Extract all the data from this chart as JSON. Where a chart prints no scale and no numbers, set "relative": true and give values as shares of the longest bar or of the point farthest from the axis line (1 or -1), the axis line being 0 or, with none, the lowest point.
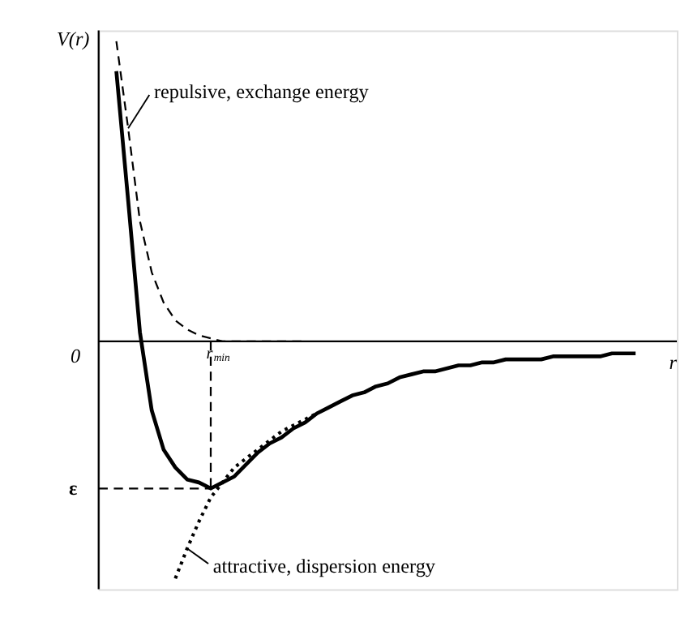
{
  "chart_data": {
    "type": "line",
    "relative": true,
    "xlabel": "r",
    "ylabel": "V(r)",
    "categories": [
      null,
      null,
      null,
      null,
      null,
      null,
      null,
      null,
      null,
      null,
      null,
      null,
      null,
      null,
      null,
      null,
      null,
      null,
      null,
      null,
      null,
      null,
      null,
      null,
      null,
      null,
      null,
      null,
      null,
      null,
      null,
      null,
      null,
      null,
      null,
      null,
      null,
      null,
      null,
      null,
      null,
      null,
      null,
      null,
      null
    ],
    "series": [
      {
        "color": "#000000",
        "line_style": "solid",
        "values": [
          0.9,
          0.47,
          0.03,
          -0.23,
          -0.36,
          -0.42,
          -0.46,
          -0.47,
          -0.49,
          -0.47,
          -0.45,
          -0.41,
          -0.37,
          -0.34,
          -0.32,
          -0.29,
          -0.27,
          -0.24,
          -0.22,
          -0.2,
          -0.18,
          -0.17,
          -0.15,
          -0.14,
          -0.12,
          -0.11,
          -0.1,
          -0.1,
          -0.09,
          -0.08,
          -0.08,
          -0.07,
          -0.07,
          -0.06,
          -0.06,
          -0.06,
          -0.06,
          -0.05,
          -0.05,
          -0.05,
          -0.05,
          -0.05,
          -0.04,
          -0.04,
          -0.04
        ]
      },
      {
        "color": "#000000",
        "line_style": "dashed",
        "values": [
          1.0,
          0.71,
          0.4,
          0.23,
          0.13,
          0.07,
          0.04,
          0.02,
          0.01,
          0,
          0,
          0,
          0,
          0,
          0,
          0,
          0,
          null,
          null,
          null,
          null,
          null,
          null,
          null,
          null,
          null,
          null,
          null,
          null,
          null,
          null,
          null,
          null,
          null,
          null,
          null,
          null,
          null,
          null,
          null,
          null,
          null,
          null,
          null,
          null
        ]
      },
      {
        "color": "#000000",
        "line_style": "dotted",
        "values": [
          null,
          null,
          null,
          null,
          null,
          -0.79,
          -0.69,
          -0.6,
          -0.52,
          -0.47,
          -0.42,
          -0.39,
          -0.36,
          -0.33,
          -0.3,
          -0.28,
          -0.26,
          -0.24,
          null,
          null,
          null,
          null,
          null,
          null,
          null,
          null,
          null,
          null,
          null,
          null,
          null,
          null,
          null,
          null,
          null,
          null,
          null,
          null,
          null,
          null,
          null,
          null,
          null,
          null,
          null
        ]
      }
    ],
    "ref_lines": [
      {
        "axis": "x",
        "label": "r$_{min}$",
        "line_style": "dashed",
        "color": "#000000"
      },
      {
        "axis": "y",
        "value": -0.49,
        "label": "ε",
        "line_style": "dashed",
        "color": "#000000"
      }
    ],
    "annotations": [
      "0",
      "repulsive, exchange energy",
      "attractive, dispersion energy"
    ]
  }
}
